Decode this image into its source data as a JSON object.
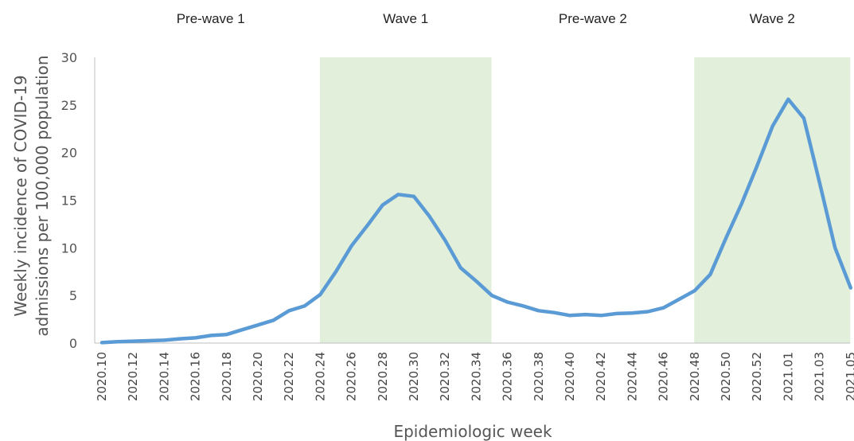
{
  "chart_data": {
    "type": "line",
    "xlabel": "Epidemiologic week",
    "ylabel_line1": "Weekly incidence of COVID-19",
    "ylabel_line2": "admissions per 100,000 population",
    "ylim": [
      0,
      30
    ],
    "yticks": [
      0,
      5,
      10,
      15,
      20,
      25,
      30
    ],
    "grid": false,
    "line_color": "#5B9BD5",
    "shade_color": "#E2EFDA",
    "x": [
      "2020.10",
      "2020.11",
      "2020.12",
      "2020.13",
      "2020.14",
      "2020.15",
      "2020.16",
      "2020.17",
      "2020.18",
      "2020.19",
      "2020.20",
      "2020.21",
      "2020.22",
      "2020.23",
      "2020.24",
      "2020.25",
      "2020.26",
      "2020.27",
      "2020.28",
      "2020.29",
      "2020.30",
      "2020.31",
      "2020.32",
      "2020.33",
      "2020.34",
      "2020.35",
      "2020.36",
      "2020.37",
      "2020.38",
      "2020.39",
      "2020.40",
      "2020.41",
      "2020.42",
      "2020.43",
      "2020.44",
      "2020.45",
      "2020.46",
      "2020.47",
      "2020.48",
      "2020.49",
      "2020.50",
      "2020.51",
      "2020.52",
      "2020.53",
      "2021.01",
      "2021.02",
      "2021.03",
      "2021.04",
      "2021.05"
    ],
    "xtick_labels": [
      "2020.10",
      "2020.12",
      "2020.14",
      "2020.16",
      "2020.18",
      "2020.20",
      "2020.22",
      "2020.24",
      "2020.26",
      "2020.28",
      "2020.30",
      "2020.32",
      "2020.34",
      "2020.36",
      "2020.38",
      "2020.40",
      "2020.42",
      "2020.44",
      "2020.46",
      "2020.48",
      "2020.50",
      "2020.52",
      "2021.01",
      "2021.03",
      "2021.05"
    ],
    "series": [
      {
        "values": [
          0.05,
          0.15,
          0.2,
          0.25,
          0.3,
          0.45,
          0.55,
          0.8,
          0.9,
          1.4,
          1.9,
          2.4,
          3.4,
          3.9,
          5.1,
          7.5,
          10.2,
          12.3,
          14.5,
          15.6,
          15.4,
          13.3,
          10.8,
          7.9,
          6.5,
          5.0,
          4.3,
          3.9,
          3.4,
          3.2,
          2.9,
          3.0,
          2.9,
          3.1,
          3.15,
          3.3,
          3.7,
          4.6,
          5.5,
          7.2,
          11.0,
          14.6,
          18.6,
          22.8,
          25.6,
          23.6,
          16.9,
          10.0,
          5.8
        ]
      }
    ],
    "phases": [
      {
        "label": "Pre-wave 1",
        "start": "2020.10",
        "end": "2020.24",
        "shaded": false
      },
      {
        "label": "Wave 1",
        "start": "2020.24",
        "end": "2020.35",
        "shaded": true
      },
      {
        "label": "Pre-wave 2",
        "start": "2020.35",
        "end": "2020.48",
        "shaded": false
      },
      {
        "label": "Wave 2",
        "start": "2020.48",
        "end": "2021.05",
        "shaded": true
      }
    ]
  }
}
